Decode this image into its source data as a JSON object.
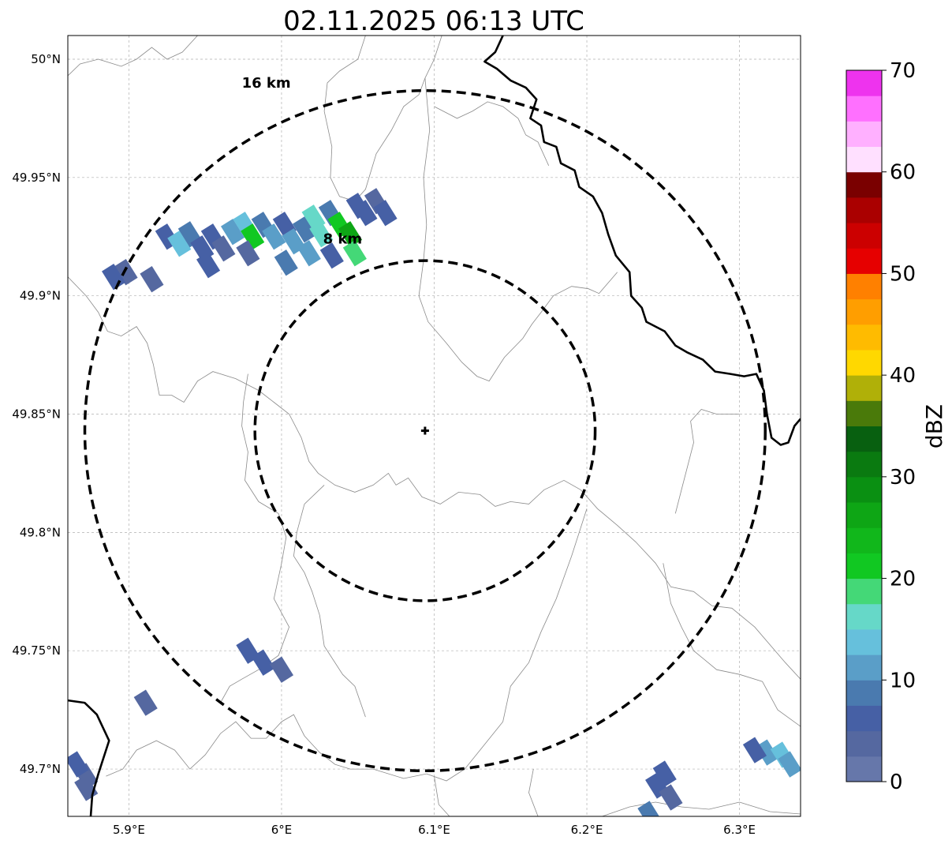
{
  "title": "02.11.2025 06:13 UTC",
  "map": {
    "lon_range": [
      5.86,
      6.34
    ],
    "lat_range": [
      49.68,
      50.01
    ],
    "lon_ticks": [
      {
        "value": 5.9,
        "label": "5.9°E"
      },
      {
        "value": 6.0,
        "label": "6°E"
      },
      {
        "value": 6.1,
        "label": "6.1°E"
      },
      {
        "value": 6.2,
        "label": "6.2°E"
      },
      {
        "value": 6.3,
        "label": "6.3°E"
      }
    ],
    "lat_ticks": [
      {
        "value": 50.0,
        "label": "50°N"
      },
      {
        "value": 49.95,
        "label": "49.95°N"
      },
      {
        "value": 49.9,
        "label": "49.9°N"
      },
      {
        "value": 49.85,
        "label": "49.85°N"
      },
      {
        "value": 49.8,
        "label": "49.8°N"
      },
      {
        "value": 49.75,
        "label": "49.75°N"
      },
      {
        "value": 49.7,
        "label": "49.7°N"
      }
    ],
    "grid": true,
    "radar_site": {
      "lon": 6.094,
      "lat": 49.843
    },
    "range_rings": [
      {
        "radius_km": 8,
        "label": "8 km",
        "label_lon": 6.04,
        "label_lat": 49.922
      },
      {
        "radius_km": 16,
        "label": "16 km",
        "label_lon": 5.99,
        "label_lat": 49.988
      }
    ],
    "borders": [
      [
        [
          6.145,
          50.01
        ],
        [
          6.14,
          50.003
        ],
        [
          6.133,
          49.999
        ],
        [
          6.141,
          49.996
        ],
        [
          6.15,
          49.991
        ],
        [
          6.16,
          49.988
        ],
        [
          6.167,
          49.983
        ],
        [
          6.163,
          49.975
        ],
        [
          6.17,
          49.972
        ],
        [
          6.172,
          49.965
        ],
        [
          6.18,
          49.963
        ],
        [
          6.183,
          49.956
        ],
        [
          6.192,
          49.953
        ],
        [
          6.195,
          49.946
        ],
        [
          6.204,
          49.942
        ],
        [
          6.21,
          49.935
        ],
        [
          6.214,
          49.926
        ],
        [
          6.219,
          49.917
        ],
        [
          6.228,
          49.91
        ],
        [
          6.229,
          49.9
        ],
        [
          6.236,
          49.895
        ],
        [
          6.239,
          49.889
        ],
        [
          6.251,
          49.885
        ],
        [
          6.258,
          49.879
        ],
        [
          6.266,
          49.876
        ],
        [
          6.276,
          49.873
        ],
        [
          6.284,
          49.868
        ],
        [
          6.294,
          49.867
        ],
        [
          6.303,
          49.866
        ],
        [
          6.311,
          49.867
        ],
        [
          6.316,
          49.86
        ],
        [
          6.318,
          49.85
        ],
        [
          6.321,
          49.84
        ],
        [
          6.327,
          49.837
        ],
        [
          6.332,
          49.838
        ],
        [
          6.336,
          49.845
        ],
        [
          6.34,
          49.848
        ]
      ],
      [
        [
          5.86,
          49.729
        ],
        [
          5.871,
          49.728
        ],
        [
          5.879,
          49.723
        ],
        [
          5.887,
          49.712
        ],
        [
          5.88,
          49.698
        ],
        [
          5.876,
          49.689
        ],
        [
          5.875,
          49.68
        ]
      ]
    ],
    "boundaries": [
      [
        [
          5.86,
          49.993
        ],
        [
          5.868,
          49.998
        ],
        [
          5.88,
          50.0
        ],
        [
          5.895,
          49.997
        ],
        [
          5.905,
          50.0
        ],
        [
          5.915,
          50.005
        ],
        [
          5.925,
          50.0
        ],
        [
          5.935,
          50.003
        ],
        [
          5.945,
          50.01
        ]
      ],
      [
        [
          6.055,
          50.01
        ],
        [
          6.05,
          50.0
        ],
        [
          6.038,
          49.995
        ],
        [
          6.03,
          49.99
        ],
        [
          6.028,
          49.978
        ],
        [
          6.033,
          49.963
        ],
        [
          6.032,
          49.95
        ],
        [
          6.038,
          49.942
        ],
        [
          6.048,
          49.94
        ],
        [
          6.055,
          49.945
        ],
        [
          6.062,
          49.96
        ],
        [
          6.072,
          49.97
        ],
        [
          6.08,
          49.98
        ],
        [
          6.09,
          49.985
        ],
        [
          6.094,
          49.992
        ],
        [
          6.1,
          50.0
        ],
        [
          6.105,
          50.01
        ]
      ],
      [
        [
          6.094,
          49.992
        ],
        [
          6.097,
          49.97
        ],
        [
          6.093,
          49.95
        ],
        [
          6.095,
          49.93
        ],
        [
          6.093,
          49.915
        ],
        [
          6.09,
          49.9
        ],
        [
          6.096,
          49.889
        ],
        [
          6.108,
          49.88
        ],
        [
          6.118,
          49.872
        ],
        [
          6.128,
          49.866
        ],
        [
          6.136,
          49.864
        ],
        [
          6.146,
          49.874
        ],
        [
          6.158,
          49.882
        ],
        [
          6.164,
          49.888
        ],
        [
          6.17,
          49.893
        ],
        [
          6.178,
          49.9
        ],
        [
          6.19,
          49.904
        ],
        [
          6.201,
          49.903
        ],
        [
          6.208,
          49.901
        ],
        [
          6.22,
          49.91
        ]
      ],
      [
        [
          6.1,
          49.98
        ],
        [
          6.115,
          49.975
        ],
        [
          6.125,
          49.978
        ],
        [
          6.135,
          49.982
        ],
        [
          6.145,
          49.98
        ],
        [
          6.155,
          49.975
        ],
        [
          6.16,
          49.968
        ],
        [
          6.168,
          49.965
        ],
        [
          6.175,
          49.955
        ]
      ],
      [
        [
          5.86,
          49.908
        ],
        [
          5.872,
          49.9
        ],
        [
          5.88,
          49.893
        ],
        [
          5.886,
          49.885
        ],
        [
          5.895,
          49.883
        ],
        [
          5.905,
          49.887
        ],
        [
          5.912,
          49.88
        ],
        [
          5.916,
          49.871
        ],
        [
          5.92,
          49.858
        ],
        [
          5.928,
          49.858
        ],
        [
          5.936,
          49.855
        ],
        [
          5.945,
          49.864
        ],
        [
          5.955,
          49.868
        ],
        [
          5.97,
          49.865
        ],
        [
          5.985,
          49.86
        ],
        [
          5.995,
          49.855
        ],
        [
          6.005,
          49.85
        ],
        [
          6.013,
          49.84
        ],
        [
          6.018,
          49.83
        ],
        [
          6.024,
          49.825
        ],
        [
          6.035,
          49.82
        ],
        [
          6.048,
          49.817
        ],
        [
          6.06,
          49.82
        ],
        [
          6.07,
          49.825
        ],
        [
          6.075,
          49.82
        ],
        [
          6.083,
          49.823
        ],
        [
          6.092,
          49.815
        ],
        [
          6.104,
          49.812
        ],
        [
          6.116,
          49.817
        ],
        [
          6.13,
          49.816
        ],
        [
          6.14,
          49.811
        ],
        [
          6.15,
          49.813
        ],
        [
          6.162,
          49.812
        ],
        [
          6.172,
          49.818
        ],
        [
          6.185,
          49.822
        ],
        [
          6.196,
          49.818
        ],
        [
          6.207,
          49.81
        ],
        [
          6.22,
          49.803
        ],
        [
          6.232,
          49.796
        ],
        [
          6.245,
          49.787
        ],
        [
          6.255,
          49.777
        ],
        [
          6.27,
          49.775
        ],
        [
          6.282,
          49.769
        ],
        [
          6.295,
          49.768
        ],
        [
          6.31,
          49.76
        ],
        [
          6.33,
          49.745
        ],
        [
          6.34,
          49.738
        ]
      ],
      [
        [
          5.978,
          49.867
        ],
        [
          5.975,
          49.855
        ],
        [
          5.974,
          49.845
        ],
        [
          5.978,
          49.834
        ],
        [
          5.976,
          49.822
        ],
        [
          5.985,
          49.813
        ],
        [
          5.998,
          49.808
        ],
        [
          6.003,
          49.798
        ],
        [
          6.0,
          49.787
        ],
        [
          5.995,
          49.772
        ],
        [
          6.005,
          49.76
        ],
        [
          5.998,
          49.748
        ],
        [
          5.985,
          49.742
        ],
        [
          5.974,
          49.738
        ],
        [
          5.966,
          49.735
        ],
        [
          5.96,
          49.728
        ]
      ],
      [
        [
          5.885,
          49.697
        ],
        [
          5.896,
          49.7
        ],
        [
          5.905,
          49.708
        ],
        [
          5.918,
          49.712
        ],
        [
          5.93,
          49.708
        ],
        [
          5.94,
          49.7
        ],
        [
          5.95,
          49.706
        ],
        [
          5.96,
          49.715
        ],
        [
          5.97,
          49.72
        ],
        [
          5.98,
          49.713
        ],
        [
          5.99,
          49.713
        ],
        [
          6.0,
          49.72
        ],
        [
          6.008,
          49.723
        ],
        [
          6.015,
          49.714
        ],
        [
          6.025,
          49.707
        ],
        [
          6.035,
          49.702
        ],
        [
          6.045,
          49.7
        ],
        [
          6.06,
          49.7
        ],
        [
          6.08,
          49.696
        ],
        [
          6.095,
          49.698
        ]
      ],
      [
        [
          6.028,
          49.82
        ],
        [
          6.015,
          49.812
        ],
        [
          6.01,
          49.8
        ],
        [
          6.008,
          49.79
        ],
        [
          6.015,
          49.783
        ],
        [
          6.02,
          49.775
        ],
        [
          6.025,
          49.765
        ],
        [
          6.028,
          49.752
        ],
        [
          6.04,
          49.74
        ],
        [
          6.048,
          49.735
        ],
        [
          6.055,
          49.722
        ]
      ],
      [
        [
          6.3,
          49.85
        ],
        [
          6.285,
          49.85
        ],
        [
          6.275,
          49.852
        ],
        [
          6.268,
          49.847
        ],
        [
          6.27,
          49.838
        ],
        [
          6.266,
          49.828
        ],
        [
          6.262,
          49.818
        ],
        [
          6.258,
          49.808
        ]
      ],
      [
        [
          6.25,
          49.787
        ],
        [
          6.255,
          49.77
        ],
        [
          6.262,
          49.76
        ],
        [
          6.27,
          49.75
        ],
        [
          6.285,
          49.742
        ],
        [
          6.3,
          49.74
        ],
        [
          6.315,
          49.737
        ],
        [
          6.325,
          49.725
        ],
        [
          6.34,
          49.718
        ]
      ],
      [
        [
          6.2,
          49.81
        ],
        [
          6.19,
          49.79
        ],
        [
          6.18,
          49.772
        ],
        [
          6.17,
          49.758
        ],
        [
          6.162,
          49.745
        ],
        [
          6.15,
          49.735
        ],
        [
          6.145,
          49.72
        ],
        [
          6.13,
          49.708
        ],
        [
          6.12,
          49.7
        ],
        [
          6.108,
          49.695
        ],
        [
          6.095,
          49.698
        ]
      ],
      [
        [
          6.1,
          49.697
        ],
        [
          6.103,
          49.685
        ],
        [
          6.11,
          49.68
        ]
      ],
      [
        [
          6.21,
          49.68
        ],
        [
          6.228,
          49.684
        ],
        [
          6.245,
          49.686
        ],
        [
          6.262,
          49.684
        ],
        [
          6.28,
          49.683
        ],
        [
          6.3,
          49.686
        ],
        [
          6.32,
          49.682
        ],
        [
          6.34,
          49.681
        ]
      ],
      [
        [
          6.165,
          49.7
        ],
        [
          6.162,
          49.69
        ],
        [
          6.168,
          49.68
        ]
      ]
    ],
    "reflectivity_cells": [
      {
        "lon": 5.925,
        "lat": 49.925,
        "dbz": 5
      },
      {
        "lon": 5.933,
        "lat": 49.922,
        "dbz": 13
      },
      {
        "lon": 5.94,
        "lat": 49.926,
        "dbz": 9
      },
      {
        "lon": 5.948,
        "lat": 49.92,
        "dbz": 5
      },
      {
        "lon": 5.955,
        "lat": 49.925,
        "dbz": 7
      },
      {
        "lon": 5.962,
        "lat": 49.92,
        "dbz": 4
      },
      {
        "lon": 5.968,
        "lat": 49.927,
        "dbz": 10
      },
      {
        "lon": 5.976,
        "lat": 49.93,
        "dbz": 14
      },
      {
        "lon": 5.981,
        "lat": 49.925,
        "dbz": 20
      },
      {
        "lon": 5.988,
        "lat": 49.93,
        "dbz": 8
      },
      {
        "lon": 5.995,
        "lat": 49.925,
        "dbz": 11
      },
      {
        "lon": 6.002,
        "lat": 49.93,
        "dbz": 6
      },
      {
        "lon": 6.008,
        "lat": 49.923,
        "dbz": 12
      },
      {
        "lon": 6.015,
        "lat": 49.928,
        "dbz": 9
      },
      {
        "lon": 6.021,
        "lat": 49.933,
        "dbz": 15
      },
      {
        "lon": 6.026,
        "lat": 49.926,
        "dbz": 17
      },
      {
        "lon": 6.032,
        "lat": 49.935,
        "dbz": 8
      },
      {
        "lon": 6.038,
        "lat": 49.93,
        "dbz": 22
      },
      {
        "lon": 6.045,
        "lat": 49.926,
        "dbz": 25
      },
      {
        "lon": 6.05,
        "lat": 49.938,
        "dbz": 5
      },
      {
        "lon": 6.055,
        "lat": 49.935,
        "dbz": 7
      },
      {
        "lon": 6.062,
        "lat": 49.94,
        "dbz": 4
      },
      {
        "lon": 6.068,
        "lat": 49.935,
        "dbz": 6
      },
      {
        "lon": 6.048,
        "lat": 49.918,
        "dbz": 19
      },
      {
        "lon": 6.018,
        "lat": 49.918,
        "dbz": 10
      },
      {
        "lon": 5.952,
        "lat": 49.913,
        "dbz": 6
      },
      {
        "lon": 5.978,
        "lat": 49.918,
        "dbz": 4
      },
      {
        "lon": 5.898,
        "lat": 49.91,
        "dbz": 3
      },
      {
        "lon": 5.89,
        "lat": 49.908,
        "dbz": 5
      },
      {
        "lon": 5.915,
        "lat": 49.907,
        "dbz": 4
      },
      {
        "lon": 6.003,
        "lat": 49.914,
        "dbz": 8
      },
      {
        "lon": 6.033,
        "lat": 49.917,
        "dbz": 6
      },
      {
        "lon": 5.978,
        "lat": 49.75,
        "dbz": 5
      },
      {
        "lon": 5.988,
        "lat": 49.745,
        "dbz": 7
      },
      {
        "lon": 6.0,
        "lat": 49.742,
        "dbz": 4
      },
      {
        "lon": 5.872,
        "lat": 49.697,
        "dbz": 4
      },
      {
        "lon": 5.866,
        "lat": 49.702,
        "dbz": 6
      },
      {
        "lon": 5.872,
        "lat": 49.692,
        "dbz": 3
      },
      {
        "lon": 5.911,
        "lat": 49.728,
        "dbz": 4
      },
      {
        "lon": 6.246,
        "lat": 49.693,
        "dbz": 5
      },
      {
        "lon": 6.255,
        "lat": 49.688,
        "dbz": 4
      },
      {
        "lon": 6.251,
        "lat": 49.698,
        "dbz": 6
      },
      {
        "lon": 6.241,
        "lat": 49.681,
        "dbz": 9
      },
      {
        "lon": 6.318,
        "lat": 49.707,
        "dbz": 10
      },
      {
        "lon": 6.328,
        "lat": 49.706,
        "dbz": 14
      },
      {
        "lon": 6.31,
        "lat": 49.708,
        "dbz": 5
      },
      {
        "lon": 6.333,
        "lat": 49.702,
        "dbz": 12
      }
    ]
  },
  "colorbar": {
    "label": "dBZ",
    "min": 0,
    "max": 70,
    "tick_labels": [
      "0",
      "10",
      "20",
      "30",
      "40",
      "50",
      "60",
      "70"
    ],
    "colors": [
      "#6677aa",
      "#5568a0",
      "#4660a5",
      "#4a7aaf",
      "#5a9ec8",
      "#66c0dc",
      "#66d8c8",
      "#44d877",
      "#11c822",
      "#11b71b",
      "#0ea615",
      "#0a9012",
      "#0a7a10",
      "#086010",
      "#4a7a0a",
      "#b0b008",
      "#ffd800",
      "#ffbb00",
      "#ff9e00",
      "#ff8000",
      "#e60000",
      "#cc0000",
      "#aa0000",
      "#7a0000",
      "#ffe0ff",
      "#ffb0ff",
      "#ff70ff",
      "#ee33ee"
    ]
  }
}
